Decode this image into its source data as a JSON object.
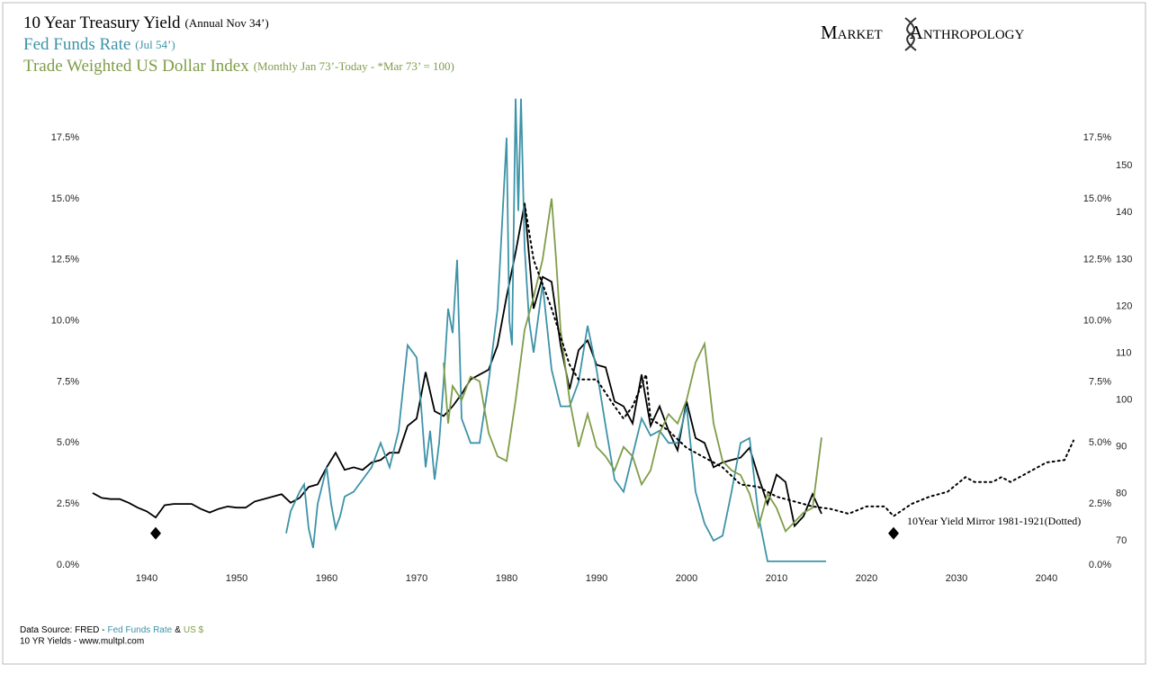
{
  "chart_data": {
    "type": "line",
    "title_notes": [
      "(Annual Nov 34’)",
      "(Jul 54’)",
      "(Monthly Jan 73’-Today - *Mar 73’ = 100)"
    ],
    "logo": [
      "Market",
      "Anthropology"
    ],
    "source": {
      "line1": [
        "Data Source: FRED -",
        "Fed Funds Rate",
        "&",
        "US $"
      ],
      "line2": "10 YR Yields - www.multpl.com"
    },
    "xlim": [
      1934,
      2043
    ],
    "xticks": [
      1940,
      1950,
      1960,
      1970,
      1980,
      1990,
      2000,
      2010,
      2020,
      2030,
      2040
    ],
    "ylim": [
      0,
      19
    ],
    "yticks": [
      {
        "value": 0,
        "label": "0.0%"
      },
      {
        "value": 2.5,
        "label": "2.5%"
      },
      {
        "value": 5,
        "label": "5.0%"
      },
      {
        "value": 7.5,
        "label": "7.5%"
      },
      {
        "value": 10,
        "label": "10.0%"
      },
      {
        "value": 12.5,
        "label": "12.5%"
      },
      {
        "value": 15,
        "label": "15.0%"
      },
      {
        "value": 17.5,
        "label": "17.5%"
      }
    ],
    "y2lim": [
      64.8,
      163.8
    ],
    "y2ticks": [
      70,
      80,
      90,
      100,
      110,
      120,
      130,
      140,
      150
    ],
    "series": [
      {
        "name": "10 Year Treasury Yield",
        "color": "#000000",
        "dash": false,
        "x": [
          1934,
          1935,
          1936,
          1937,
          1938,
          1939,
          1940,
          1941,
          1942,
          1943,
          1944,
          1945,
          1946,
          1947,
          1948,
          1949,
          1950,
          1951,
          1952,
          1953,
          1954,
          1955,
          1956,
          1957,
          1958,
          1959,
          1960,
          1961,
          1962,
          1963,
          1964,
          1965,
          1966,
          1967,
          1968,
          1969,
          1970,
          1971,
          1972,
          1973,
          1974,
          1975,
          1976,
          1977,
          1978,
          1979,
          1980,
          1981,
          1982,
          1983,
          1984,
          1985,
          1986,
          1987,
          1988,
          1989,
          1990,
          1991,
          1992,
          1993,
          1994,
          1995,
          1996,
          1997,
          1998,
          1999,
          2000,
          2001,
          2002,
          2003,
          2004,
          2005,
          2006,
          2007,
          2008,
          2009,
          2010,
          2011,
          2012,
          2013,
          2014,
          2015
        ],
        "values": [
          2.95,
          2.75,
          2.7,
          2.7,
          2.55,
          2.35,
          2.2,
          1.95,
          2.45,
          2.5,
          2.5,
          2.5,
          2.3,
          2.15,
          2.3,
          2.4,
          2.35,
          2.35,
          2.6,
          2.7,
          2.8,
          2.9,
          2.55,
          2.75,
          3.2,
          3.3,
          4.0,
          4.6,
          3.9,
          4.0,
          3.9,
          4.2,
          4.3,
          4.6,
          4.6,
          5.7,
          6.0,
          7.9,
          6.3,
          6.1,
          6.5,
          7.0,
          7.6,
          7.8,
          8.0,
          9.0,
          11.0,
          12.8,
          14.8,
          10.5,
          11.8,
          11.6,
          9.0,
          7.2,
          8.8,
          9.2,
          8.2,
          8.1,
          6.7,
          6.5,
          5.8,
          7.8,
          5.7,
          6.5,
          5.5,
          4.7,
          6.7,
          5.2,
          5.0,
          4.0,
          4.2,
          4.3,
          4.4,
          4.8,
          3.6,
          2.5,
          3.7,
          3.4,
          1.6,
          2.0,
          2.9,
          2.1
        ]
      },
      {
        "name": "Fed Funds Rate",
        "color": "#3d93a8",
        "dash": false,
        "x": [
          1955.5,
          1956,
          1957,
          1957.5,
          1958,
          1958.5,
          1959,
          1960,
          1960.5,
          1961,
          1961.5,
          1962,
          1963,
          1964,
          1965,
          1966,
          1967,
          1968,
          1969,
          1970,
          1970.5,
          1971,
          1971.5,
          1972,
          1972.5,
          1973,
          1973.5,
          1974,
          1974.5,
          1975,
          1976,
          1977,
          1978,
          1979,
          1980,
          1980.3,
          1980.6,
          1981,
          1981.3,
          1981.6,
          1982,
          1982.5,
          1983,
          1984,
          1985,
          1986,
          1987,
          1988,
          1989,
          1990,
          1991,
          1992,
          1993,
          1994,
          1995,
          1996,
          1997,
          1998,
          1999,
          2000,
          2001,
          2002,
          2003,
          2004,
          2005,
          2006,
          2007,
          2008,
          2009,
          2010,
          2011,
          2012,
          2013,
          2014,
          2015.5
        ],
        "values": [
          1.3,
          2.2,
          3.0,
          3.3,
          1.5,
          0.7,
          2.5,
          4.0,
          2.5,
          1.5,
          2.0,
          2.8,
          3.0,
          3.5,
          4.0,
          5.0,
          4.0,
          5.5,
          9.0,
          8.5,
          6.5,
          4.0,
          5.5,
          3.5,
          5.0,
          7.5,
          10.5,
          9.5,
          12.5,
          6.0,
          5.0,
          5.0,
          7.5,
          10.5,
          17.5,
          10.0,
          9.0,
          19.1,
          14.5,
          19.1,
          13.0,
          10.0,
          8.7,
          11.5,
          8.0,
          6.5,
          6.5,
          7.5,
          9.8,
          8.0,
          5.7,
          3.5,
          3.0,
          4.5,
          6.0,
          5.3,
          5.5,
          5.0,
          5.0,
          6.5,
          3.0,
          1.7,
          1.0,
          1.2,
          3.0,
          5.0,
          5.2,
          2.0,
          0.15,
          0.15,
          0.15,
          0.15,
          0.15,
          0.15,
          0.15
        ]
      },
      {
        "name": "Trade Weighted US Dollar Index",
        "color": "#7f9d48",
        "dash": false,
        "axis": "y2",
        "x": [
          1973,
          1973.5,
          1974,
          1975,
          1976,
          1977,
          1978,
          1979,
          1980,
          1981,
          1982,
          1983,
          1984,
          1985,
          1985.5,
          1986,
          1987,
          1988,
          1989,
          1990,
          1991,
          1992,
          1993,
          1994,
          1995,
          1996,
          1997,
          1998,
          1999,
          2000,
          2001,
          2002,
          2003,
          2004,
          2005,
          2006,
          2007,
          2008,
          2009,
          2010,
          2011,
          2012,
          2013,
          2014,
          2015
        ],
        "values": [
          108,
          95,
          103,
          100,
          105,
          104,
          93,
          88,
          87,
          100,
          115,
          122,
          130,
          143,
          130,
          115,
          100,
          90,
          97,
          90,
          88,
          85,
          90,
          88,
          82,
          85,
          93,
          97,
          95,
          100,
          108,
          112,
          95,
          87,
          85,
          84,
          80,
          73,
          80,
          77,
          72,
          74,
          76,
          77,
          92
        ]
      },
      {
        "name": "10Year Yield Mirror 1981-1921(Dotted)",
        "color": "#000000",
        "dash": true,
        "x": [
          1982,
          1983,
          1985,
          1987,
          1988,
          1990,
          1992,
          1993,
          1994,
          1995.5,
          1996,
          1998,
          2000,
          2002,
          2004,
          2006,
          2008,
          2010,
          2012,
          2014,
          2016,
          2018,
          2020,
          2022,
          2023,
          2025,
          2027,
          2029,
          2031,
          2032,
          2034,
          2035,
          2036,
          2038,
          2040,
          2042,
          2043
        ],
        "values": [
          14.8,
          12.5,
          10.5,
          8.2,
          7.6,
          7.6,
          6.5,
          6.0,
          6.5,
          7.8,
          6.0,
          5.5,
          4.8,
          4.4,
          4.0,
          3.3,
          3.2,
          2.8,
          2.6,
          2.4,
          2.3,
          2.1,
          2.4,
          2.4,
          2.0,
          2.5,
          2.8,
          3.0,
          3.6,
          3.4,
          3.4,
          3.6,
          3.4,
          3.8,
          4.2,
          4.3,
          5.1
        ]
      }
    ],
    "markers": {
      "x": [
        1941,
        2023
      ],
      "values": [
        1.3,
        1.3
      ]
    }
  }
}
